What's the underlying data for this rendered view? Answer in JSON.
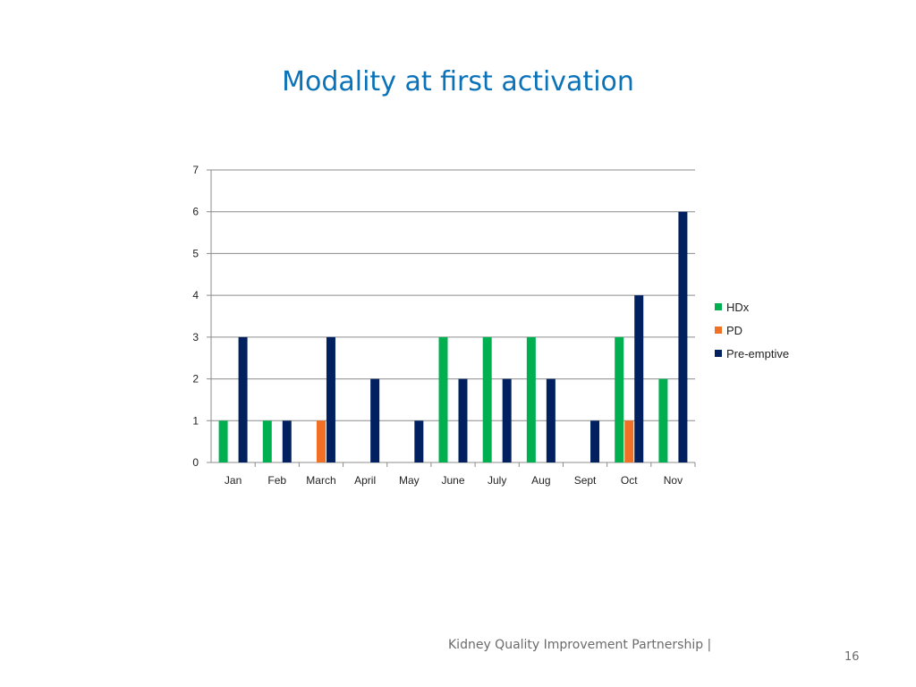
{
  "slide": {
    "title": "Modality at first activation",
    "footer": "Kidney Quality Improvement Partnership |",
    "page_number": "16"
  },
  "chart_data": {
    "type": "bar",
    "title": "",
    "xlabel": "",
    "ylabel": "",
    "ylim": [
      0,
      7
    ],
    "yticks": [
      0,
      1,
      2,
      3,
      4,
      5,
      6,
      7
    ],
    "grid": true,
    "legend_position": "right",
    "categories": [
      "Jan",
      "Feb",
      "March",
      "April",
      "May",
      "June",
      "July",
      "Aug",
      "Sept",
      "Oct",
      "Nov"
    ],
    "series": [
      {
        "name": "HDx",
        "color": "#00b050",
        "values": [
          1,
          1,
          0,
          0,
          0,
          3,
          3,
          3,
          0,
          3,
          2
        ]
      },
      {
        "name": "PD",
        "color": "#f07125",
        "values": [
          0,
          0,
          1,
          0,
          0,
          0,
          0,
          0,
          0,
          1,
          0
        ]
      },
      {
        "name": "Pre-emptive",
        "color": "#002060",
        "values": [
          3,
          1,
          3,
          2,
          1,
          2,
          2,
          2,
          1,
          4,
          6
        ]
      }
    ]
  }
}
